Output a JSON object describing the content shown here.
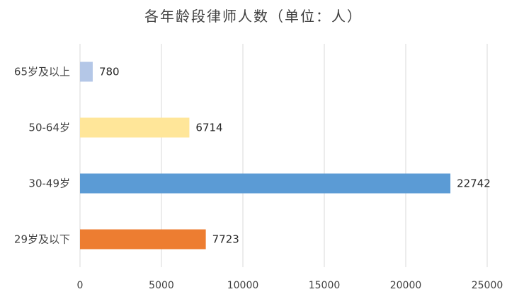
{
  "chart_data": {
    "type": "bar",
    "orientation": "horizontal",
    "title": "各年龄段律师人数（单位：人）",
    "categories": [
      "65岁及以上",
      "50-64岁",
      "30-49岁",
      "29岁及以下"
    ],
    "values": [
      780,
      6714,
      22742,
      7723
    ],
    "colors": [
      "#b4c7e7",
      "#ffe699",
      "#5b9bd5",
      "#ed7d31"
    ],
    "xlim": [
      0,
      25000
    ],
    "xticks": [
      "0",
      "5000",
      "10000",
      "15000",
      "20000",
      "25000"
    ],
    "grid": true,
    "data_labels": true,
    "legend": "none"
  }
}
